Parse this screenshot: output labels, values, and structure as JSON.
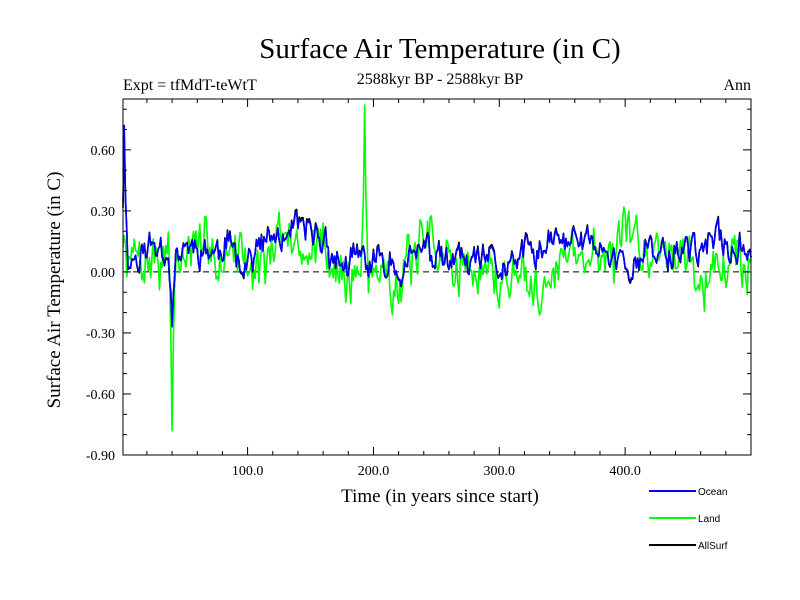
{
  "chart_data": {
    "type": "line",
    "title": "Surface Air Temperature (in C)",
    "subtitle": "2588kyr BP - 2588kyr BP",
    "expt_label": "Expt = tfMdT-teWtT",
    "season_label": "Ann",
    "xlabel": "Time (in years since start)",
    "ylabel": "Surface Air Temperature (in C)",
    "xlim": [
      1,
      500
    ],
    "ylim": [
      -0.9,
      0.85
    ],
    "x_ticks": [
      100,
      200,
      300,
      400
    ],
    "x_tick_labels": [
      "100.0",
      "200.0",
      "300.0",
      "400.0"
    ],
    "y_ticks": [
      -0.9,
      -0.6,
      -0.3,
      0.0,
      0.3,
      0.6
    ],
    "y_tick_labels": [
      "-0.90",
      "-0.60",
      "-0.30",
      "0.00",
      "0.30",
      "0.60"
    ],
    "zero_line": true,
    "legend_position": "bottom-right",
    "colors": {
      "Ocean": "#0000ff",
      "Land": "#00ff00",
      "AllSurf": "#000000"
    },
    "series": [
      {
        "name": "Land",
        "color": "#00ff00",
        "generator": {
          "mean": 0.06,
          "amplitude": 0.21,
          "seed": 7,
          "peak": {
            "year": 193,
            "value": 0.82
          },
          "trough": {
            "year": 40,
            "value": -0.78
          }
        }
      },
      {
        "name": "AllSurf",
        "color": "#000000",
        "generator": {
          "mean": 0.07,
          "amplitude": 0.13,
          "seed": 11,
          "peak": {
            "year": 2,
            "value": 0.66
          },
          "trough": {
            "year": 40,
            "value": -0.26
          }
        }
      },
      {
        "name": "Ocean",
        "color": "#0000ff",
        "generator": {
          "mean": 0.07,
          "amplitude": 0.12,
          "seed": 11,
          "peak": {
            "year": 2,
            "value": 0.72
          },
          "trough": {
            "year": 40,
            "value": -0.27
          }
        }
      }
    ],
    "legend": [
      {
        "name": "Ocean",
        "color": "#0000ff"
      },
      {
        "name": "Land",
        "color": "#00ff00"
      },
      {
        "name": "AllSurf",
        "color": "#000000"
      }
    ]
  }
}
